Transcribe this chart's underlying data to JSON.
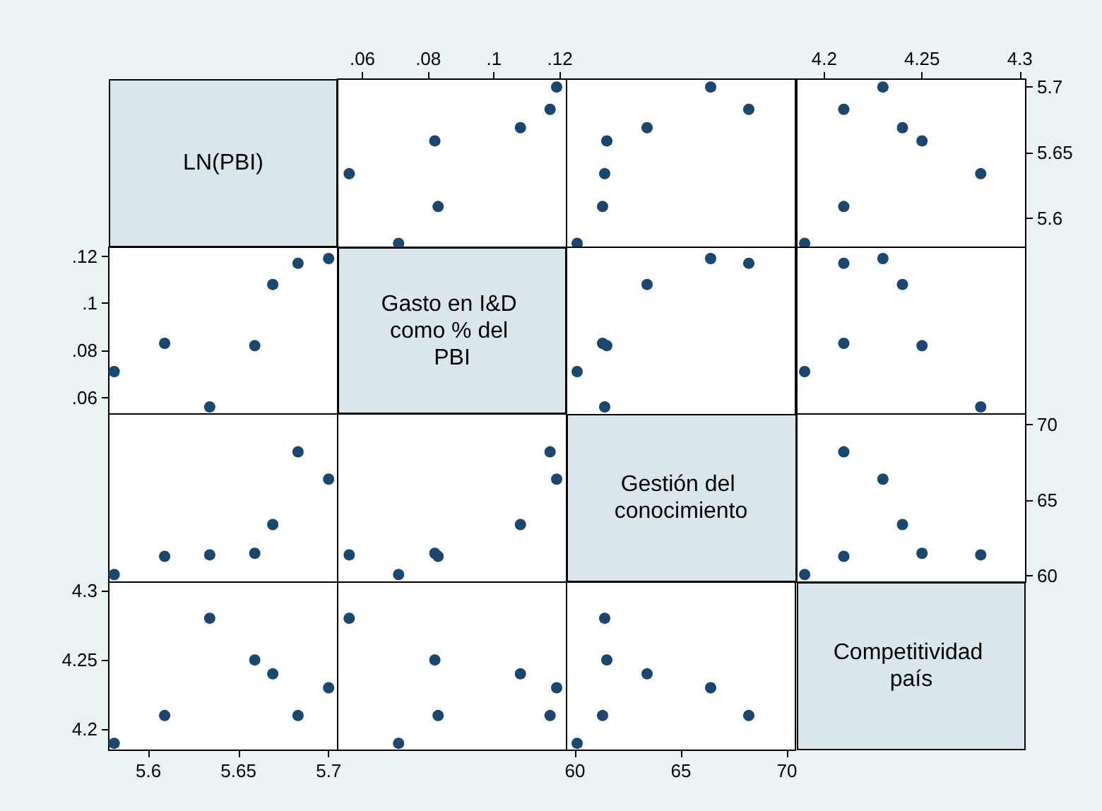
{
  "chart_data": [
    {
      "type": "other",
      "title": "LN(PBI)"
    },
    {
      "type": "scatter",
      "x": [
        0.071,
        0.083,
        0.056,
        0.082,
        0.108,
        0.117,
        0.119
      ],
      "values": [
        5.581,
        5.609,
        5.634,
        5.659,
        5.669,
        5.683,
        5.7
      ],
      "color": "#1a476f",
      "marker": "circle",
      "xlim": [
        0.0525,
        0.122
      ],
      "xticks": [
        {
          "value": 0.06,
          "label": ".06"
        },
        {
          "value": 0.08,
          "label": ".08"
        },
        {
          "value": 0.1,
          "label": ".1"
        },
        {
          "value": 0.12,
          "label": ".12"
        }
      ],
      "ylim": [
        5.578,
        5.706
      ],
      "tick_labels": "x"
    },
    {
      "type": "scatter",
      "x": [
        60.1,
        61.3,
        61.4,
        61.5,
        63.4,
        68.2,
        66.4
      ],
      "values": [
        5.581,
        5.609,
        5.634,
        5.659,
        5.669,
        5.683,
        5.7
      ],
      "color": "#1a476f",
      "marker": "circle",
      "xlim": [
        59.6,
        70.4
      ],
      "ylim": [
        5.578,
        5.706
      ],
      "tick_labels": false
    },
    {
      "type": "scatter",
      "x": [
        4.19,
        4.21,
        4.28,
        4.25,
        4.24,
        4.21,
        4.23
      ],
      "values": [
        5.581,
        5.609,
        5.634,
        5.659,
        5.669,
        5.683,
        5.7
      ],
      "color": "#1a476f",
      "marker": "circle",
      "xlim": [
        4.186,
        4.303
      ],
      "xticks": [
        4.2,
        4.25,
        4.3
      ],
      "ylim": [
        5.578,
        5.706
      ],
      "yticks": [
        5.6,
        5.65,
        5.7
      ]
    },
    {
      "type": "scatter",
      "x": [
        5.581,
        5.609,
        5.634,
        5.659,
        5.669,
        5.683,
        5.7
      ],
      "values": [
        0.071,
        0.083,
        0.056,
        0.082,
        0.108,
        0.117,
        0.119
      ],
      "color": "#1a476f",
      "marker": "circle",
      "xlim": [
        5.578,
        5.705
      ],
      "ylim": [
        0.0524,
        0.1238
      ],
      "yticks": [
        {
          "value": 0.06,
          "label": ".06"
        },
        {
          "value": 0.08,
          "label": ".08"
        },
        {
          "value": 0.1,
          "label": ".1"
        },
        {
          "value": 0.12,
          "label": ".12"
        }
      ],
      "tick_labels": "y"
    },
    {
      "type": "other",
      "title": "Gasto en I&D como % del PBI"
    },
    {
      "type": "scatter",
      "x": [
        60.1,
        61.3,
        61.4,
        61.5,
        63.4,
        68.2,
        66.4
      ],
      "values": [
        0.071,
        0.083,
        0.056,
        0.082,
        0.108,
        0.117,
        0.119
      ],
      "color": "#1a476f",
      "marker": "circle",
      "xlim": [
        59.6,
        70.4
      ],
      "ylim": [
        0.0524,
        0.1238
      ],
      "tick_labels": false
    },
    {
      "type": "scatter",
      "x": [
        4.19,
        4.21,
        4.28,
        4.25,
        4.24,
        4.21,
        4.23
      ],
      "values": [
        0.071,
        0.083,
        0.056,
        0.082,
        0.108,
        0.117,
        0.119
      ],
      "color": "#1a476f",
      "marker": "circle",
      "xlim": [
        4.186,
        4.303
      ],
      "ylim": [
        0.0524,
        0.1238
      ],
      "tick_labels": false
    },
    {
      "type": "scatter",
      "x": [
        5.581,
        5.609,
        5.634,
        5.659,
        5.669,
        5.683,
        5.7
      ],
      "values": [
        60.1,
        61.3,
        61.4,
        61.5,
        63.4,
        68.2,
        66.4
      ],
      "color": "#1a476f",
      "marker": "circle",
      "xlim": [
        5.578,
        5.705
      ],
      "ylim": [
        59.6,
        70.7
      ],
      "tick_labels": false
    },
    {
      "type": "scatter",
      "x": [
        0.071,
        0.083,
        0.056,
        0.082,
        0.108,
        0.117,
        0.119
      ],
      "values": [
        60.1,
        61.3,
        61.4,
        61.5,
        63.4,
        68.2,
        66.4
      ],
      "color": "#1a476f",
      "marker": "circle",
      "xlim": [
        0.0525,
        0.122
      ],
      "ylim": [
        59.6,
        70.7
      ],
      "tick_labels": false
    },
    {
      "type": "other",
      "title": "Gestión del conocimiento"
    },
    {
      "type": "scatter",
      "x": [
        4.19,
        4.21,
        4.28,
        4.25,
        4.24,
        4.21,
        4.23
      ],
      "values": [
        60.1,
        61.3,
        61.4,
        61.5,
        63.4,
        68.2,
        66.4
      ],
      "color": "#1a476f",
      "marker": "circle",
      "xlim": [
        4.186,
        4.303
      ],
      "ylim": [
        59.6,
        70.7
      ],
      "yticks": [
        60,
        65,
        70
      ],
      "tick_labels": "y"
    },
    {
      "type": "scatter",
      "x": [
        5.581,
        5.609,
        5.634,
        5.659,
        5.669,
        5.683,
        5.7
      ],
      "values": [
        4.19,
        4.21,
        4.28,
        4.25,
        4.24,
        4.21,
        4.23
      ],
      "color": "#1a476f",
      "marker": "circle",
      "xlim": [
        5.578,
        5.705
      ],
      "xticks": [
        5.6,
        5.65,
        5.7
      ],
      "ylim": [
        4.185,
        4.306
      ],
      "yticks": [
        4.2,
        4.25,
        4.3
      ]
    },
    {
      "type": "scatter",
      "x": [
        0.071,
        0.083,
        0.056,
        0.082,
        0.108,
        0.117,
        0.119
      ],
      "values": [
        4.19,
        4.21,
        4.28,
        4.25,
        4.24,
        4.21,
        4.23
      ],
      "color": "#1a476f",
      "marker": "circle",
      "xlim": [
        0.0525,
        0.122
      ],
      "ylim": [
        4.185,
        4.306
      ],
      "tick_labels": false
    },
    {
      "type": "scatter",
      "x": [
        60.1,
        61.3,
        61.4,
        61.5,
        63.4,
        68.2,
        66.4
      ],
      "values": [
        4.19,
        4.21,
        4.28,
        4.25,
        4.24,
        4.21,
        4.23
      ],
      "color": "#1a476f",
      "marker": "circle",
      "xlim": [
        59.6,
        70.4
      ],
      "xticks": [
        60,
        65,
        70
      ],
      "ylim": [
        4.185,
        4.306
      ],
      "tick_labels": "x"
    },
    {
      "type": "other",
      "title": "Competitividad país"
    }
  ]
}
